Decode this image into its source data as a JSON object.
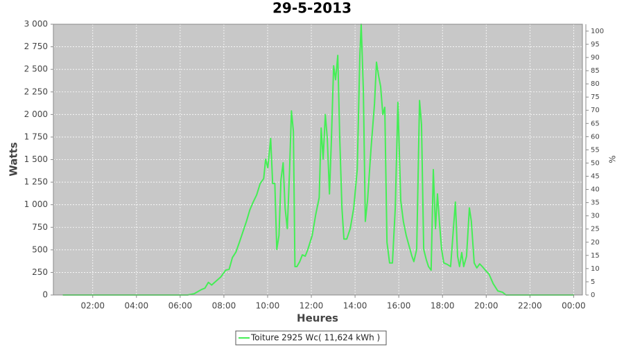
{
  "chart_data": {
    "type": "line",
    "title": "29-5-2013",
    "x_label": "Heures",
    "y_label": "Watts",
    "y2_label": "%",
    "x": [
      0.63,
      6.34,
      6.65,
      6.97,
      7.13,
      7.29,
      7.44,
      7.6,
      7.86,
      8.08,
      8.24,
      8.39,
      8.55,
      8.71,
      8.87,
      9.03,
      9.19,
      9.34,
      9.5,
      9.66,
      9.82,
      9.91,
      10.01,
      10.14,
      10.23,
      10.33,
      10.42,
      10.52,
      10.61,
      10.71,
      10.8,
      10.9,
      11.0,
      11.09,
      11.18,
      11.25,
      11.34,
      11.47,
      11.59,
      11.72,
      11.84,
      12.04,
      12.2,
      12.36,
      12.45,
      12.54,
      12.64,
      12.73,
      12.83,
      12.92,
      13.02,
      13.11,
      13.21,
      13.3,
      13.4,
      13.49,
      13.62,
      13.78,
      13.94,
      14.1,
      14.22,
      14.28,
      14.38,
      14.47,
      14.57,
      14.73,
      14.89,
      14.98,
      15.08,
      15.17,
      15.27,
      15.36,
      15.46,
      15.58,
      15.71,
      15.84,
      15.96,
      16.09,
      16.21,
      16.34,
      16.47,
      16.6,
      16.69,
      16.82,
      16.95,
      17.04,
      17.14,
      17.26,
      17.36,
      17.48,
      17.58,
      17.68,
      17.77,
      17.87,
      17.96,
      18.06,
      18.21,
      18.37,
      18.5,
      18.59,
      18.69,
      18.78,
      18.88,
      18.97,
      19.1,
      19.23,
      19.32,
      19.45,
      19.57,
      19.7,
      19.82,
      19.96,
      20.13,
      20.32,
      20.53,
      20.75,
      20.9,
      24.01
    ],
    "series": [
      {
        "name": "Toiture 2925 Wc( 11,624 kWh )",
        "color": "#44ee55",
        "values": [
          0,
          0,
          15,
          60,
          75,
          140,
          110,
          145,
          200,
          275,
          285,
          415,
          475,
          585,
          700,
          815,
          945,
          1030,
          1110,
          1235,
          1290,
          1505,
          1410,
          1735,
          1235,
          1235,
          505,
          660,
          1275,
          1465,
          965,
          735,
          1350,
          2040,
          1810,
          315,
          315,
          370,
          445,
          430,
          505,
          660,
          890,
          1080,
          1850,
          1505,
          2000,
          1735,
          1120,
          1735,
          2540,
          2385,
          2655,
          1735,
          965,
          620,
          620,
          735,
          965,
          1390,
          2655,
          3000,
          2270,
          815,
          1045,
          1620,
          2120,
          2580,
          2425,
          2310,
          2000,
          2080,
          585,
          355,
          355,
          965,
          2135,
          1045,
          815,
          660,
          545,
          430,
          370,
          505,
          2155,
          1890,
          505,
          390,
          315,
          275,
          1390,
          735,
          1120,
          775,
          505,
          355,
          340,
          315,
          735,
          1030,
          430,
          315,
          470,
          315,
          430,
          965,
          815,
          355,
          300,
          345,
          315,
          275,
          230,
          125,
          45,
          30,
          0,
          0
        ]
      }
    ],
    "xlim": [
      0.2,
      24.4
    ],
    "xticks": [
      {
        "value": 2,
        "label": "02:00"
      },
      {
        "value": 4,
        "label": "04:00"
      },
      {
        "value": 6,
        "label": "06:00"
      },
      {
        "value": 8,
        "label": "08:00"
      },
      {
        "value": 10,
        "label": "10:00"
      },
      {
        "value": 12,
        "label": "12:00"
      },
      {
        "value": 14,
        "label": "14:00"
      },
      {
        "value": 16,
        "label": "16:00"
      },
      {
        "value": 18,
        "label": "18:00"
      },
      {
        "value": 20,
        "label": "20:00"
      },
      {
        "value": 22,
        "label": "22:00"
      },
      {
        "value": 24,
        "label": "00:00"
      }
    ],
    "ylim": [
      0,
      3000
    ],
    "yticks": [
      0,
      250,
      500,
      750,
      {
        "value": 1000,
        "label": "1 000"
      },
      {
        "value": 1250,
        "label": "1 250"
      },
      {
        "value": 1500,
        "label": "1 500"
      },
      {
        "value": 1750,
        "label": "1 750"
      },
      {
        "value": 2000,
        "label": "2 000"
      },
      {
        "value": 2250,
        "label": "2 250"
      },
      {
        "value": 2500,
        "label": "2 500"
      },
      {
        "value": 2750,
        "label": "2 750"
      },
      {
        "value": 3000,
        "label": "3 000"
      }
    ],
    "y2lim": [
      0,
      102.6
    ],
    "y2ticks": [
      0,
      5,
      10,
      15,
      20,
      25,
      30,
      35,
      40,
      45,
      50,
      55,
      60,
      65,
      70,
      75,
      80,
      85,
      90,
      95,
      100
    ],
    "grid": true,
    "background": "#c8c8c8"
  }
}
